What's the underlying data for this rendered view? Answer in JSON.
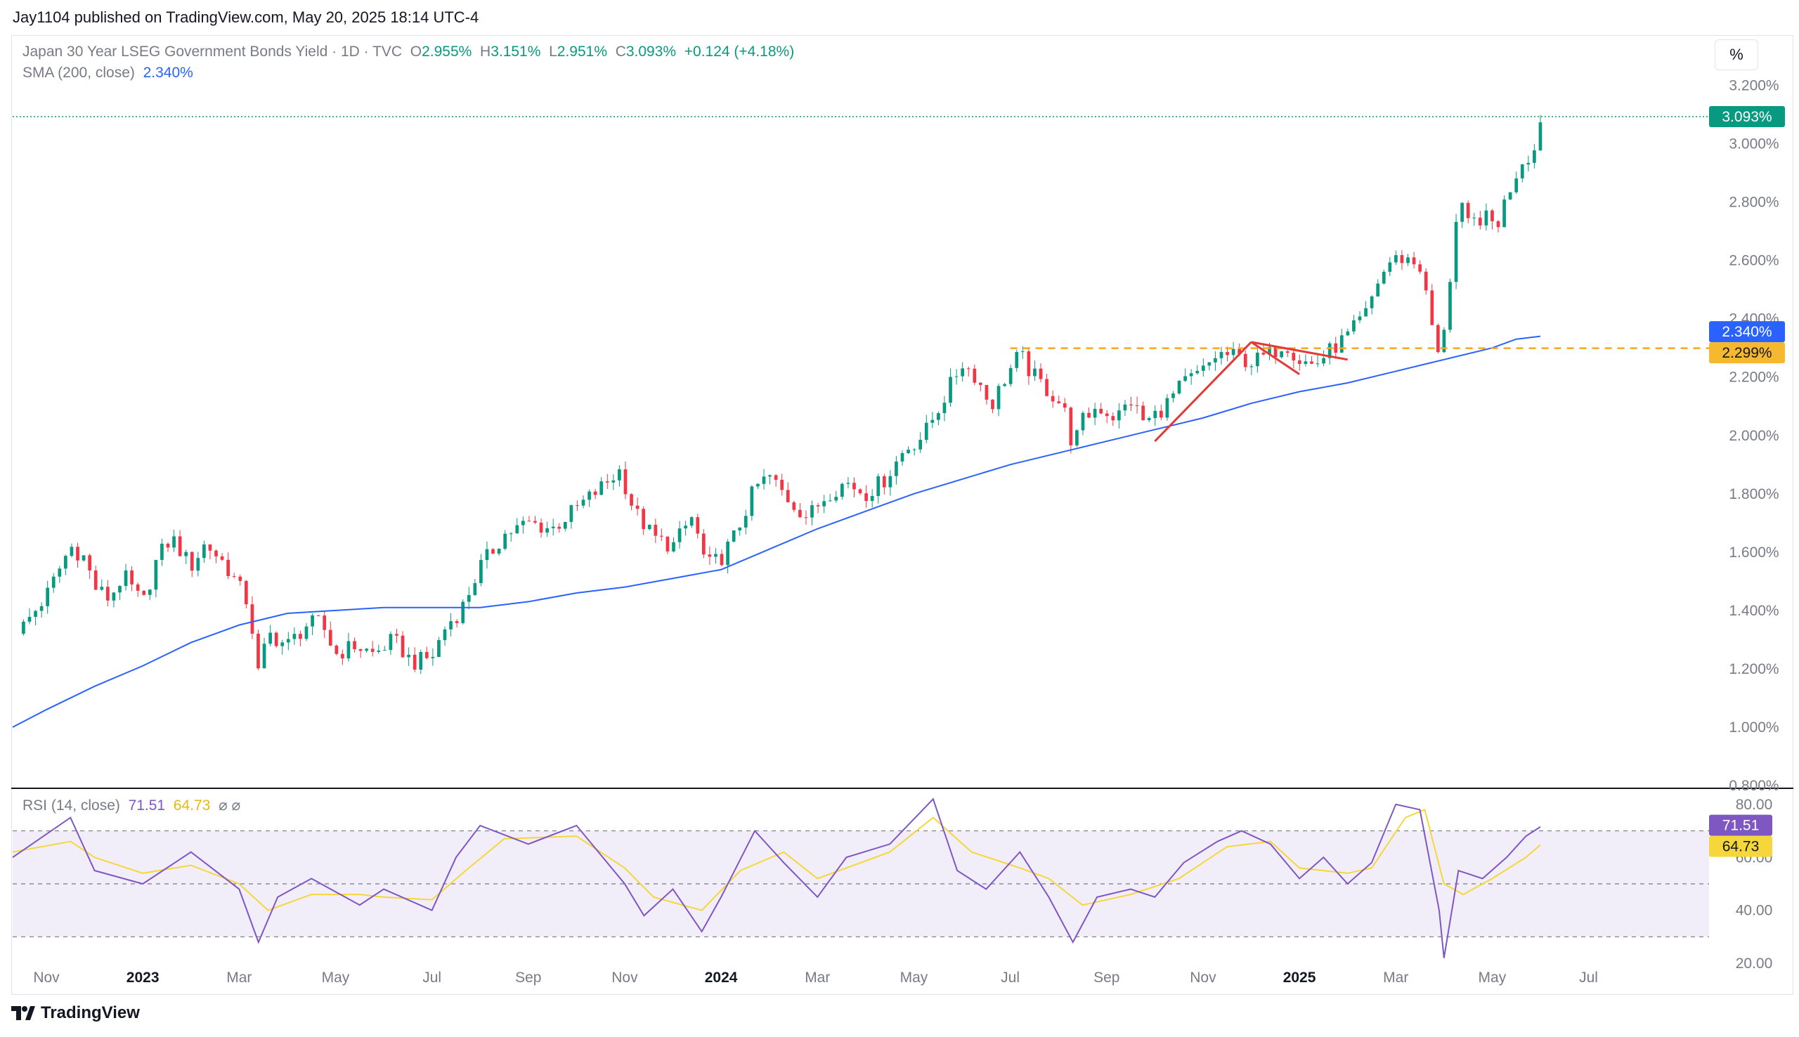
{
  "header": {
    "published": "Jay1104 published on TradingView.com, May 20, 2025 18:14 UTC-4"
  },
  "legend": {
    "title": "Japan 30 Year LSEG Government Bonds Yield · 1D · TVC",
    "o_label": "O",
    "o_value": "2.955%",
    "h_label": "H",
    "h_value": "3.151%",
    "l_label": "L",
    "l_value": "2.951%",
    "c_label": "C",
    "c_value": "3.093%",
    "change": "+0.124 (+4.18%)",
    "sma_label": "SMA (200, close)",
    "sma_value": "2.340%",
    "rsi_label": "RSI (14, close)",
    "rsi_value": "71.51",
    "rsi_ma_value": "64.73",
    "rsi_icons": "⌀  ⌀"
  },
  "toolbar": {
    "percent_button": "%"
  },
  "branding": {
    "logo_text": "TradingView",
    "logo_icon": "tradingview-logo-icon"
  },
  "colors": {
    "up": "#089981",
    "down": "#f23645",
    "sma": "#2962ff",
    "rsi": "#7e57c2",
    "rsi_ma": "#f5d73b",
    "dashed_level": "#f5a623",
    "pattern": "#e53935"
  },
  "chart_data": [
    {
      "type": "candlestick",
      "title": "Japan 30 Year LSEG Government Bonds Yield · 1D · TVC",
      "ylabel": "%",
      "ylim": [
        0.8,
        3.3
      ],
      "y_ticks": [
        "3.200%",
        "3.000%",
        "2.800%",
        "2.600%",
        "2.400%",
        "2.200%",
        "2.000%",
        "1.800%",
        "1.600%",
        "1.400%",
        "1.200%",
        "1.000%",
        "0.800%"
      ],
      "x_ticks": [
        "Nov",
        "2023",
        "Mar",
        "May",
        "Jul",
        "Sep",
        "Nov",
        "2024",
        "Mar",
        "May",
        "Jul",
        "Sep",
        "Nov",
        "2025",
        "Mar",
        "May",
        "Jul"
      ],
      "x_tick_months": [
        0,
        2,
        4,
        6,
        8,
        10,
        12,
        14,
        16,
        18,
        20,
        22,
        24,
        26,
        28,
        30,
        32
      ],
      "xlim_months": [
        -0.7,
        34.5
      ],
      "price_path": [
        [
          -0.6,
          1.32
        ],
        [
          0.0,
          1.45
        ],
        [
          0.5,
          1.62
        ],
        [
          0.8,
          1.58
        ],
        [
          1.0,
          1.48
        ],
        [
          1.3,
          1.44
        ],
        [
          1.6,
          1.52
        ],
        [
          2.0,
          1.42
        ],
        [
          2.3,
          1.58
        ],
        [
          2.6,
          1.65
        ],
        [
          3.0,
          1.55
        ],
        [
          3.3,
          1.63
        ],
        [
          3.7,
          1.56
        ],
        [
          4.0,
          1.48
        ],
        [
          4.2,
          1.42
        ],
        [
          4.4,
          1.18
        ],
        [
          4.6,
          1.32
        ],
        [
          5.0,
          1.28
        ],
        [
          5.4,
          1.35
        ],
        [
          5.7,
          1.36
        ],
        [
          6.0,
          1.25
        ],
        [
          6.4,
          1.28
        ],
        [
          6.8,
          1.25
        ],
        [
          7.2,
          1.3
        ],
        [
          7.6,
          1.22
        ],
        [
          8.0,
          1.24
        ],
        [
          8.3,
          1.35
        ],
        [
          8.6,
          1.4
        ],
        [
          9.0,
          1.55
        ],
        [
          9.5,
          1.66
        ],
        [
          10.0,
          1.7
        ],
        [
          10.5,
          1.68
        ],
        [
          11.0,
          1.75
        ],
        [
          11.5,
          1.82
        ],
        [
          11.9,
          1.88
        ],
        [
          12.2,
          1.74
        ],
        [
          12.6,
          1.65
        ],
        [
          13.0,
          1.62
        ],
        [
          13.4,
          1.72
        ],
        [
          13.7,
          1.55
        ],
        [
          14.0,
          1.58
        ],
        [
          14.3,
          1.66
        ],
        [
          14.7,
          1.82
        ],
        [
          15.0,
          1.86
        ],
        [
          15.4,
          1.78
        ],
        [
          15.8,
          1.72
        ],
        [
          16.2,
          1.8
        ],
        [
          16.6,
          1.84
        ],
        [
          17.0,
          1.8
        ],
        [
          17.4,
          1.85
        ],
        [
          17.8,
          1.95
        ],
        [
          18.2,
          2.0
        ],
        [
          18.6,
          2.12
        ],
        [
          19.0,
          2.25
        ],
        [
          19.3,
          2.2
        ],
        [
          19.6,
          2.1
        ],
        [
          19.9,
          2.2
        ],
        [
          20.2,
          2.28
        ],
        [
          20.4,
          2.22
        ],
        [
          20.8,
          2.15
        ],
        [
          21.1,
          2.1
        ],
        [
          21.3,
          1.96
        ],
        [
          21.5,
          2.05
        ],
        [
          21.8,
          2.1
        ],
        [
          22.2,
          2.06
        ],
        [
          22.5,
          2.12
        ],
        [
          22.8,
          2.04
        ],
        [
          23.2,
          2.1
        ],
        [
          23.6,
          2.18
        ],
        [
          24.0,
          2.22
        ],
        [
          24.3,
          2.28
        ],
        [
          24.7,
          2.27
        ],
        [
          25.0,
          2.25
        ],
        [
          25.4,
          2.28
        ],
        [
          25.7,
          2.32
        ],
        [
          26.0,
          2.26
        ],
        [
          26.3,
          2.24
        ],
        [
          26.7,
          2.3
        ],
        [
          27.0,
          2.34
        ],
        [
          27.4,
          2.42
        ],
        [
          27.6,
          2.52
        ],
        [
          27.9,
          2.6
        ],
        [
          28.2,
          2.61
        ],
        [
          28.5,
          2.58
        ],
        [
          28.7,
          2.42
        ],
        [
          28.9,
          2.25
        ],
        [
          29.1,
          2.5
        ],
        [
          29.3,
          2.8
        ],
        [
          29.5,
          2.72
        ],
        [
          29.8,
          2.75
        ],
        [
          30.1,
          2.72
        ],
        [
          30.3,
          2.82
        ],
        [
          30.6,
          2.94
        ],
        [
          30.9,
          2.98
        ],
        [
          31.0,
          3.09
        ]
      ],
      "candle_range": [
        -0.6,
        31.0
      ],
      "candles_per_month": 8,
      "sma_path": [
        [
          -0.7,
          1.0
        ],
        [
          0.0,
          1.06
        ],
        [
          1.0,
          1.14
        ],
        [
          2.0,
          1.21
        ],
        [
          3.0,
          1.29
        ],
        [
          4.0,
          1.35
        ],
        [
          5.0,
          1.39
        ],
        [
          6.0,
          1.4
        ],
        [
          7.0,
          1.41
        ],
        [
          8.0,
          1.41
        ],
        [
          9.0,
          1.41
        ],
        [
          10.0,
          1.43
        ],
        [
          11.0,
          1.46
        ],
        [
          12.0,
          1.48
        ],
        [
          13.0,
          1.51
        ],
        [
          14.0,
          1.54
        ],
        [
          15.0,
          1.61
        ],
        [
          16.0,
          1.68
        ],
        [
          17.0,
          1.74
        ],
        [
          18.0,
          1.8
        ],
        [
          19.0,
          1.85
        ],
        [
          20.0,
          1.9
        ],
        [
          21.0,
          1.94
        ],
        [
          22.0,
          1.98
        ],
        [
          23.0,
          2.02
        ],
        [
          24.0,
          2.06
        ],
        [
          25.0,
          2.11
        ],
        [
          26.0,
          2.15
        ],
        [
          27.0,
          2.18
        ],
        [
          28.0,
          2.22
        ],
        [
          29.0,
          2.26
        ],
        [
          30.0,
          2.3
        ],
        [
          30.5,
          2.33
        ],
        [
          31.0,
          2.34
        ]
      ],
      "current_price": {
        "label": "3.093%",
        "value": 3.093
      },
      "sma_label": {
        "label": "2.340%",
        "value": 2.34
      },
      "level_label": {
        "label": "2.299%",
        "value": 2.299
      },
      "level_line": {
        "value": 2.299,
        "from_month": 20.0,
        "to_month": 34.5,
        "style": "dashed"
      },
      "pattern_lines": [
        [
          [
            23.0,
            1.98
          ],
          [
            25.0,
            2.32
          ]
        ],
        [
          [
            25.0,
            2.32
          ],
          [
            26.0,
            2.21
          ]
        ],
        [
          [
            25.0,
            2.32
          ],
          [
            27.0,
            2.26
          ]
        ]
      ]
    },
    {
      "type": "line",
      "title": "RSI (14, close)",
      "ylim": [
        15,
        85
      ],
      "y_ticks": [
        "80.00",
        "60.00",
        "40.00",
        "20.00"
      ],
      "bands": [
        70,
        50,
        30
      ],
      "current_rsi": {
        "label": "71.51",
        "value": 71.51
      },
      "current_ma": {
        "label": "64.73",
        "value": 64.73
      },
      "rsi_path": [
        [
          -0.7,
          60
        ],
        [
          0.5,
          75
        ],
        [
          1.0,
          55
        ],
        [
          2.0,
          50
        ],
        [
          3.0,
          62
        ],
        [
          4.0,
          48
        ],
        [
          4.4,
          28
        ],
        [
          4.8,
          45
        ],
        [
          5.5,
          52
        ],
        [
          6.5,
          42
        ],
        [
          7.0,
          48
        ],
        [
          8.0,
          40
        ],
        [
          8.5,
          60
        ],
        [
          9.0,
          72
        ],
        [
          10.0,
          65
        ],
        [
          11.0,
          72
        ],
        [
          12.0,
          50
        ],
        [
          12.4,
          38
        ],
        [
          13.0,
          48
        ],
        [
          13.6,
          32
        ],
        [
          14.0,
          45
        ],
        [
          14.7,
          70
        ],
        [
          15.3,
          58
        ],
        [
          16.0,
          45
        ],
        [
          16.6,
          60
        ],
        [
          17.5,
          65
        ],
        [
          18.4,
          82
        ],
        [
          18.9,
          55
        ],
        [
          19.5,
          48
        ],
        [
          20.2,
          62
        ],
        [
          20.8,
          45
        ],
        [
          21.3,
          28
        ],
        [
          21.8,
          45
        ],
        [
          22.5,
          48
        ],
        [
          23.0,
          45
        ],
        [
          23.6,
          58
        ],
        [
          24.3,
          66
        ],
        [
          24.8,
          70
        ],
        [
          25.4,
          65
        ],
        [
          26.0,
          52
        ],
        [
          26.5,
          60
        ],
        [
          27.0,
          50
        ],
        [
          27.5,
          58
        ],
        [
          28.0,
          80
        ],
        [
          28.5,
          78
        ],
        [
          28.9,
          40
        ],
        [
          29.0,
          22
        ],
        [
          29.3,
          55
        ],
        [
          29.8,
          52
        ],
        [
          30.3,
          60
        ],
        [
          30.7,
          68
        ],
        [
          31.0,
          71.51
        ]
      ],
      "rsi_ma_path": [
        [
          -0.7,
          62
        ],
        [
          0.5,
          66
        ],
        [
          1.0,
          60
        ],
        [
          2.0,
          54
        ],
        [
          3.0,
          57
        ],
        [
          4.0,
          50
        ],
        [
          4.6,
          40
        ],
        [
          5.5,
          46
        ],
        [
          6.5,
          46
        ],
        [
          7.0,
          45
        ],
        [
          8.0,
          44
        ],
        [
          8.7,
          55
        ],
        [
          9.5,
          67
        ],
        [
          11.0,
          68
        ],
        [
          12.0,
          56
        ],
        [
          12.6,
          45
        ],
        [
          13.6,
          40
        ],
        [
          14.4,
          55
        ],
        [
          15.3,
          62
        ],
        [
          16.0,
          52
        ],
        [
          17.5,
          62
        ],
        [
          18.4,
          75
        ],
        [
          19.2,
          62
        ],
        [
          20.2,
          56
        ],
        [
          20.8,
          52
        ],
        [
          21.5,
          42
        ],
        [
          22.5,
          46
        ],
        [
          23.5,
          52
        ],
        [
          24.5,
          64
        ],
        [
          25.4,
          66
        ],
        [
          26.0,
          56
        ],
        [
          27.0,
          54
        ],
        [
          27.5,
          56
        ],
        [
          28.2,
          75
        ],
        [
          28.6,
          78
        ],
        [
          29.0,
          50
        ],
        [
          29.4,
          46
        ],
        [
          30.0,
          52
        ],
        [
          30.7,
          60
        ],
        [
          31.0,
          64.73
        ]
      ]
    }
  ]
}
